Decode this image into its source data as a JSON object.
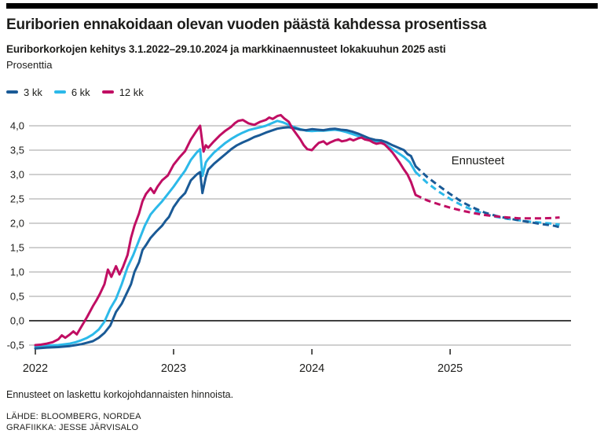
{
  "page": {
    "title": "Euriborien ennakoidaan olevan vuoden päästä kahdessa prosentissa",
    "subtitle": "Euriborkorkojen kehitys 3.1.2022–29.10.2024 ja markkinaennusteet lokakuuhun 2025 asti",
    "unit_label": "Prosenttia",
    "footnote": "Ennusteet on laskettu korkojohdannaisten hinnoista.",
    "source_line": "LÄHDE: BLOOMBERG, NORDEA",
    "credit_line": "GRAFIIKKA: JESSE JÄRVISALO"
  },
  "colors": {
    "accent_3kk": "#1a5a96",
    "accent_6kk": "#2cb9e9",
    "accent_12kk": "#c00e63",
    "grid": "#a0a0a0",
    "zero_line": "#000000",
    "axis_tick": "#1d1d1b",
    "text": "#1d1d1b"
  },
  "legend": [
    {
      "id": "3-kk",
      "label": "3 kk",
      "color": "#1a5a96"
    },
    {
      "id": "6-kk",
      "label": "6 kk",
      "color": "#2cb9e9"
    },
    {
      "id": "12-kk",
      "label": "12 kk",
      "color": "#c00e63"
    }
  ],
  "chart_data": {
    "type": "line",
    "title": "Euriborien ennakoidaan olevan vuoden päästä kahdessa prosentissa",
    "subtitle": "Euriborkorkojen kehitys 3.1.2022–29.10.2024 ja markkinaennusteet lokakuuhun 2025 asti",
    "ylabel": "Prosenttia",
    "x_unit": "months since Jan 2022",
    "x_range": [
      "2022-01",
      "2025-10"
    ],
    "ylim": [
      -0.6,
      4.25
    ],
    "grid": true,
    "legend_position": "top-left",
    "annotation": {
      "text": "Ennusteet",
      "t": 36.1,
      "v": 3.21
    },
    "yticks": [
      {
        "v": 4.0,
        "label": "4,0"
      },
      {
        "v": 3.5,
        "label": "3,5"
      },
      {
        "v": 3.0,
        "label": "3,0"
      },
      {
        "v": 2.5,
        "label": "2,5"
      },
      {
        "v": 2.0,
        "label": "2,0"
      },
      {
        "v": 1.5,
        "label": "1,5"
      },
      {
        "v": 1.0,
        "label": "1,0"
      },
      {
        "v": 0.5,
        "label": "0,5"
      },
      {
        "v": 0.0,
        "label": "0,0"
      },
      {
        "v": -0.5,
        "label": "-0,5"
      }
    ],
    "xticks": [
      {
        "t": 0,
        "label": "2022"
      },
      {
        "t": 12,
        "label": "2023"
      },
      {
        "t": 24,
        "label": "2024"
      },
      {
        "t": 36,
        "label": "2025"
      }
    ],
    "series": [
      {
        "id": "6-kk-ennuste",
        "name": "6 kk ennuste",
        "color": "#2cb9e9",
        "style": "dashed",
        "points": [
          [
            33,
            3.05
          ],
          [
            34,
            2.83
          ],
          [
            35,
            2.65
          ],
          [
            36,
            2.5
          ],
          [
            37,
            2.37
          ],
          [
            38,
            2.27
          ],
          [
            39,
            2.19
          ],
          [
            40,
            2.13
          ],
          [
            41,
            2.09
          ],
          [
            42,
            2.06
          ],
          [
            43,
            2.03
          ],
          [
            44,
            2.01
          ],
          [
            45,
            1.99
          ],
          [
            45.5,
            1.97
          ]
        ]
      },
      {
        "id": "3-kk-ennuste",
        "name": "3 kk ennuste",
        "color": "#1a5a96",
        "style": "dashed",
        "points": [
          [
            33,
            3.17
          ],
          [
            34,
            2.95
          ],
          [
            35,
            2.77
          ],
          [
            36,
            2.6
          ],
          [
            37,
            2.44
          ],
          [
            38,
            2.32
          ],
          [
            39,
            2.22
          ],
          [
            40,
            2.15
          ],
          [
            41,
            2.1
          ],
          [
            42,
            2.06
          ],
          [
            43,
            2.02
          ],
          [
            44,
            1.98
          ],
          [
            45,
            1.95
          ],
          [
            45.5,
            1.92
          ]
        ]
      },
      {
        "id": "12-kk-ennuste",
        "name": "12 kk ennuste",
        "color": "#c00e63",
        "style": "dashed",
        "points": [
          [
            33,
            2.58
          ],
          [
            34,
            2.47
          ],
          [
            35,
            2.39
          ],
          [
            36,
            2.32
          ],
          [
            37,
            2.26
          ],
          [
            38,
            2.21
          ],
          [
            39,
            2.17
          ],
          [
            40,
            2.14
          ],
          [
            41,
            2.12
          ],
          [
            42,
            2.1
          ],
          [
            43,
            2.1
          ],
          [
            44,
            2.1
          ],
          [
            45,
            2.11
          ],
          [
            45.5,
            2.12
          ]
        ]
      },
      {
        "id": "6-kk",
        "name": "6 kk",
        "color": "#2cb9e9",
        "style": "solid",
        "points": [
          [
            0,
            -0.53
          ],
          [
            1,
            -0.51
          ],
          [
            2,
            -0.5
          ],
          [
            3,
            -0.47
          ],
          [
            3.5,
            -0.44
          ],
          [
            4,
            -0.4
          ],
          [
            4.5,
            -0.35
          ],
          [
            5,
            -0.28
          ],
          [
            5.5,
            -0.18
          ],
          [
            6,
            -0.02
          ],
          [
            6.5,
            0.25
          ],
          [
            7,
            0.45
          ],
          [
            7.5,
            0.75
          ],
          [
            8,
            1.1
          ],
          [
            8.5,
            1.35
          ],
          [
            9,
            1.65
          ],
          [
            9.5,
            1.95
          ],
          [
            10,
            2.18
          ],
          [
            10.5,
            2.32
          ],
          [
            11,
            2.45
          ],
          [
            11.5,
            2.6
          ],
          [
            12,
            2.75
          ],
          [
            12.5,
            2.92
          ],
          [
            13,
            3.08
          ],
          [
            13.5,
            3.3
          ],
          [
            14,
            3.45
          ],
          [
            14.3,
            3.52
          ],
          [
            14.5,
            2.97
          ],
          [
            14.8,
            3.25
          ],
          [
            15,
            3.32
          ],
          [
            15.5,
            3.45
          ],
          [
            16,
            3.55
          ],
          [
            16.5,
            3.65
          ],
          [
            17,
            3.73
          ],
          [
            17.5,
            3.8
          ],
          [
            18,
            3.86
          ],
          [
            18.5,
            3.91
          ],
          [
            19,
            3.94
          ],
          [
            19.5,
            3.97
          ],
          [
            20,
            4.0
          ],
          [
            20.5,
            4.05
          ],
          [
            21,
            4.1
          ],
          [
            21.5,
            4.07
          ],
          [
            22,
            4.02
          ],
          [
            22.5,
            3.97
          ],
          [
            23,
            3.93
          ],
          [
            23.5,
            3.9
          ],
          [
            24,
            3.89
          ],
          [
            24.5,
            3.9
          ],
          [
            25,
            3.9
          ],
          [
            25.5,
            3.91
          ],
          [
            26,
            3.92
          ],
          [
            26.5,
            3.9
          ],
          [
            27,
            3.87
          ],
          [
            27.5,
            3.83
          ],
          [
            28,
            3.79
          ],
          [
            28.5,
            3.74
          ],
          [
            29,
            3.7
          ],
          [
            29.5,
            3.68
          ],
          [
            30,
            3.66
          ],
          [
            30.5,
            3.6
          ],
          [
            31,
            3.52
          ],
          [
            31.5,
            3.44
          ],
          [
            32,
            3.36
          ],
          [
            32.5,
            3.25
          ],
          [
            33,
            3.05
          ]
        ]
      },
      {
        "id": "3-kk",
        "name": "3 kk",
        "color": "#1a5a96",
        "style": "solid",
        "points": [
          [
            0,
            -0.57
          ],
          [
            1,
            -0.55
          ],
          [
            2,
            -0.54
          ],
          [
            3,
            -0.52
          ],
          [
            3.5,
            -0.5
          ],
          [
            4,
            -0.48
          ],
          [
            4.5,
            -0.45
          ],
          [
            5,
            -0.42
          ],
          [
            5.5,
            -0.35
          ],
          [
            6,
            -0.25
          ],
          [
            6.5,
            -0.1
          ],
          [
            7,
            0.18
          ],
          [
            7.5,
            0.35
          ],
          [
            8,
            0.6
          ],
          [
            8.3,
            0.75
          ],
          [
            8.6,
            1.0
          ],
          [
            9,
            1.2
          ],
          [
            9.3,
            1.45
          ],
          [
            9.6,
            1.55
          ],
          [
            10,
            1.7
          ],
          [
            10.5,
            1.83
          ],
          [
            11,
            1.95
          ],
          [
            11.3,
            2.05
          ],
          [
            11.6,
            2.13
          ],
          [
            12,
            2.33
          ],
          [
            12.5,
            2.5
          ],
          [
            13,
            2.62
          ],
          [
            13.5,
            2.88
          ],
          [
            14,
            3.0
          ],
          [
            14.3,
            3.05
          ],
          [
            14.5,
            2.62
          ],
          [
            14.8,
            2.95
          ],
          [
            15,
            3.1
          ],
          [
            15.5,
            3.22
          ],
          [
            16,
            3.32
          ],
          [
            16.5,
            3.42
          ],
          [
            17,
            3.52
          ],
          [
            17.5,
            3.6
          ],
          [
            18,
            3.66
          ],
          [
            18.5,
            3.71
          ],
          [
            19,
            3.77
          ],
          [
            19.5,
            3.81
          ],
          [
            20,
            3.86
          ],
          [
            20.5,
            3.9
          ],
          [
            21,
            3.94
          ],
          [
            21.5,
            3.96
          ],
          [
            22,
            3.97
          ],
          [
            22.5,
            3.95
          ],
          [
            23,
            3.92
          ],
          [
            23.5,
            3.91
          ],
          [
            24,
            3.93
          ],
          [
            24.5,
            3.92
          ],
          [
            25,
            3.91
          ],
          [
            25.5,
            3.93
          ],
          [
            26,
            3.94
          ],
          [
            26.5,
            3.92
          ],
          [
            27,
            3.91
          ],
          [
            27.5,
            3.88
          ],
          [
            28,
            3.84
          ],
          [
            28.5,
            3.79
          ],
          [
            29,
            3.74
          ],
          [
            29.5,
            3.71
          ],
          [
            30,
            3.7
          ],
          [
            30.5,
            3.66
          ],
          [
            31,
            3.6
          ],
          [
            31.5,
            3.55
          ],
          [
            32,
            3.5
          ],
          [
            32.3,
            3.42
          ],
          [
            32.6,
            3.38
          ],
          [
            33,
            3.17
          ]
        ]
      },
      {
        "id": "12-kk",
        "name": "12 kk",
        "color": "#c00e63",
        "style": "solid",
        "points": [
          [
            0,
            -0.5
          ],
          [
            0.5,
            -0.49
          ],
          [
            1,
            -0.47
          ],
          [
            1.5,
            -0.44
          ],
          [
            2,
            -0.38
          ],
          [
            2.3,
            -0.3
          ],
          [
            2.6,
            -0.35
          ],
          [
            3,
            -0.28
          ],
          [
            3.3,
            -0.22
          ],
          [
            3.6,
            -0.28
          ],
          [
            4,
            -0.12
          ],
          [
            4.5,
            0.08
          ],
          [
            5,
            0.3
          ],
          [
            5.3,
            0.42
          ],
          [
            5.6,
            0.55
          ],
          [
            6,
            0.75
          ],
          [
            6.3,
            1.05
          ],
          [
            6.6,
            0.9
          ],
          [
            7,
            1.12
          ],
          [
            7.3,
            0.95
          ],
          [
            7.6,
            1.1
          ],
          [
            8,
            1.35
          ],
          [
            8.3,
            1.7
          ],
          [
            8.6,
            1.95
          ],
          [
            9,
            2.2
          ],
          [
            9.3,
            2.45
          ],
          [
            9.6,
            2.6
          ],
          [
            10,
            2.72
          ],
          [
            10.3,
            2.62
          ],
          [
            10.6,
            2.75
          ],
          [
            11,
            2.88
          ],
          [
            11.5,
            2.98
          ],
          [
            12,
            3.2
          ],
          [
            12.5,
            3.35
          ],
          [
            13,
            3.48
          ],
          [
            13.5,
            3.72
          ],
          [
            14,
            3.9
          ],
          [
            14.3,
            4.0
          ],
          [
            14.6,
            3.47
          ],
          [
            14.8,
            3.6
          ],
          [
            15,
            3.55
          ],
          [
            15.5,
            3.68
          ],
          [
            16,
            3.8
          ],
          [
            16.5,
            3.9
          ],
          [
            17,
            3.98
          ],
          [
            17.3,
            4.05
          ],
          [
            17.6,
            4.1
          ],
          [
            18,
            4.12
          ],
          [
            18.5,
            4.05
          ],
          [
            19,
            4.02
          ],
          [
            19.5,
            4.08
          ],
          [
            20,
            4.12
          ],
          [
            20.3,
            4.17
          ],
          [
            20.6,
            4.14
          ],
          [
            21,
            4.2
          ],
          [
            21.3,
            4.22
          ],
          [
            21.6,
            4.15
          ],
          [
            22,
            4.08
          ],
          [
            22.3,
            3.95
          ],
          [
            22.6,
            3.85
          ],
          [
            23,
            3.72
          ],
          [
            23.3,
            3.6
          ],
          [
            23.6,
            3.52
          ],
          [
            24,
            3.5
          ],
          [
            24.3,
            3.58
          ],
          [
            24.6,
            3.65
          ],
          [
            25,
            3.68
          ],
          [
            25.3,
            3.62
          ],
          [
            25.6,
            3.66
          ],
          [
            26,
            3.7
          ],
          [
            26.3,
            3.72
          ],
          [
            26.6,
            3.68
          ],
          [
            27,
            3.7
          ],
          [
            27.3,
            3.73
          ],
          [
            27.6,
            3.7
          ],
          [
            28,
            3.74
          ],
          [
            28.3,
            3.76
          ],
          [
            28.6,
            3.72
          ],
          [
            29,
            3.7
          ],
          [
            29.3,
            3.66
          ],
          [
            29.6,
            3.63
          ],
          [
            30,
            3.65
          ],
          [
            30.3,
            3.62
          ],
          [
            30.6,
            3.55
          ],
          [
            31,
            3.45
          ],
          [
            31.3,
            3.35
          ],
          [
            31.6,
            3.25
          ],
          [
            32,
            3.1
          ],
          [
            32.3,
            3.0
          ],
          [
            32.6,
            2.85
          ],
          [
            33,
            2.58
          ]
        ]
      }
    ]
  }
}
